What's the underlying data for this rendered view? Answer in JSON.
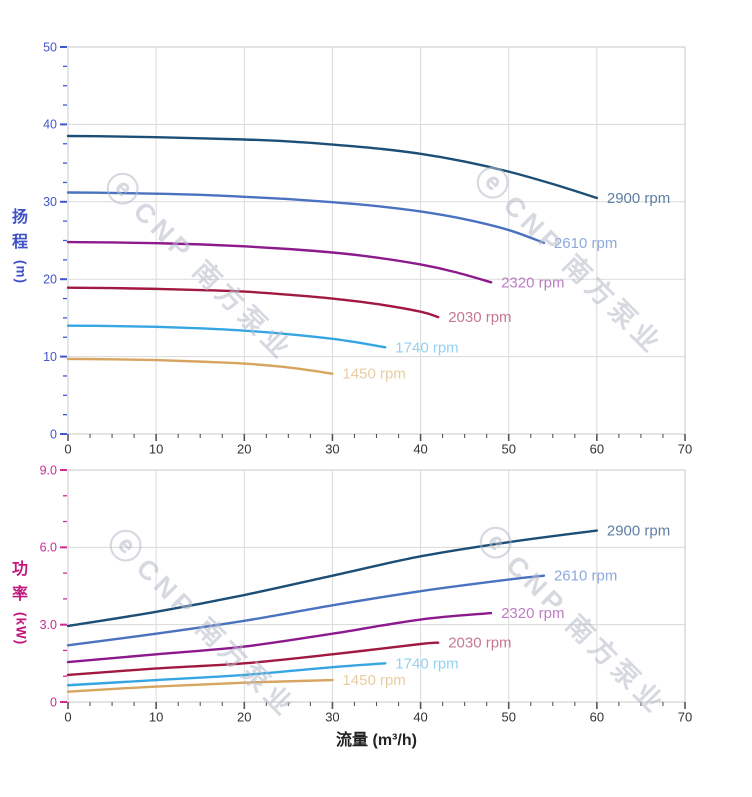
{
  "page": {
    "background": "#ffffff"
  },
  "watermark": {
    "logo_glyph": "ⓔ",
    "text": "CNP 南方泵业"
  },
  "colors": {
    "grid": "#dadada",
    "plot_border": "#c9c9c9",
    "x_tick": "#555555",
    "x_tick_label": "#333333",
    "head_axis": "#4456cd",
    "power_axis": "#cb2b94"
  },
  "chart_data": [
    {
      "type": "line",
      "title": "",
      "ylabel": "扬程 (m)",
      "ylabel_chars": [
        "扬",
        "程"
      ],
      "ylabel_unit": "(m)",
      "xlabel": "",
      "xlim": [
        0,
        70
      ],
      "ylim": [
        0,
        50
      ],
      "x_major": 10,
      "x_minor": 2.5,
      "y_major": 10,
      "y_minor": 2.5,
      "x_tick_labels": [
        "0",
        "10",
        "20",
        "30",
        "40",
        "50",
        "60",
        "70"
      ],
      "y_tick_labels": [
        "0",
        "10",
        "20",
        "30",
        "40",
        "50"
      ],
      "axis_color": "#4456cd",
      "grid": true,
      "legend_position": "end-of-curve labels",
      "series": [
        {
          "name": "2900 rpm",
          "color": "#1d4f76",
          "label_color": "#5f7fa3",
          "x": [
            0,
            5,
            10,
            15,
            20,
            25,
            30,
            35,
            40,
            45,
            50,
            55,
            60
          ],
          "y": [
            38.5,
            38.45,
            38.35,
            38.2,
            38.05,
            37.8,
            37.4,
            36.9,
            36.2,
            35.2,
            33.9,
            32.3,
            30.5
          ]
        },
        {
          "name": "2610 rpm",
          "color": "#4a72c0",
          "label_color": "#8fa9dc",
          "x": [
            0,
            5,
            10,
            15,
            20,
            25,
            30,
            35,
            40,
            45,
            50,
            54
          ],
          "y": [
            31.2,
            31.15,
            31.05,
            30.9,
            30.65,
            30.35,
            29.95,
            29.45,
            28.75,
            27.75,
            26.35,
            24.7
          ]
        },
        {
          "name": "2320 rpm",
          "color": "#8d1a8d",
          "label_color": "#bc7ec2",
          "x": [
            0,
            5,
            10,
            15,
            20,
            25,
            30,
            35,
            40,
            44,
            48
          ],
          "y": [
            24.8,
            24.75,
            24.65,
            24.5,
            24.25,
            23.9,
            23.45,
            22.8,
            21.9,
            20.9,
            19.6
          ]
        },
        {
          "name": "2030 rpm",
          "color": "#a11840",
          "label_color": "#c4798f",
          "x": [
            0,
            5,
            10,
            15,
            20,
            25,
            30,
            35,
            40,
            42
          ],
          "y": [
            18.9,
            18.85,
            18.75,
            18.6,
            18.4,
            18.0,
            17.5,
            16.8,
            15.8,
            15.1
          ]
        },
        {
          "name": "1740 rpm",
          "color": "#36a6e2",
          "label_color": "#93d2f0",
          "x": [
            0,
            5,
            10,
            15,
            20,
            25,
            30,
            33,
            36
          ],
          "y": [
            14.0,
            13.95,
            13.85,
            13.65,
            13.35,
            12.9,
            12.3,
            11.8,
            11.2
          ]
        },
        {
          "name": "1450 rpm",
          "color": "#d8a560",
          "label_color": "#e9cda2",
          "x": [
            0,
            5,
            10,
            15,
            20,
            25,
            30
          ],
          "y": [
            9.7,
            9.65,
            9.55,
            9.35,
            9.1,
            8.6,
            7.8
          ]
        }
      ]
    },
    {
      "type": "line",
      "title": "",
      "ylabel": "功率 (kW)",
      "ylabel_chars": [
        "功",
        "率"
      ],
      "ylabel_unit": "(kW)",
      "xlabel": "流量 (m³/h)",
      "xlim": [
        0,
        70
      ],
      "ylim": [
        0,
        9
      ],
      "x_major": 10,
      "x_minor": 2.5,
      "y_major": 3,
      "y_minor": 1,
      "x_tick_labels": [
        "0",
        "10",
        "20",
        "30",
        "40",
        "50",
        "60",
        "70"
      ],
      "y_tick_labels": [
        "0",
        "3.0",
        "6.0",
        "9.0"
      ],
      "axis_color": "#cb2b94",
      "grid": true,
      "legend_position": "end-of-curve labels",
      "series": [
        {
          "name": "2900 rpm",
          "color": "#1d4f76",
          "label_color": "#5f7fa3",
          "x": [
            0,
            10,
            20,
            30,
            40,
            50,
            60
          ],
          "y": [
            2.95,
            3.5,
            4.15,
            4.9,
            5.65,
            6.2,
            6.65
          ]
        },
        {
          "name": "2610 rpm",
          "color": "#4a72c0",
          "label_color": "#8fa9dc",
          "x": [
            0,
            10,
            20,
            30,
            40,
            50,
            54
          ],
          "y": [
            2.2,
            2.65,
            3.15,
            3.75,
            4.3,
            4.75,
            4.9
          ]
        },
        {
          "name": "2320 rpm",
          "color": "#8d1a8d",
          "label_color": "#bc7ec2",
          "x": [
            0,
            10,
            20,
            30,
            40,
            48
          ],
          "y": [
            1.55,
            1.85,
            2.15,
            2.65,
            3.2,
            3.45
          ]
        },
        {
          "name": "2030 rpm",
          "color": "#a11840",
          "label_color": "#c4798f",
          "x": [
            0,
            10,
            20,
            30,
            40,
            42
          ],
          "y": [
            1.05,
            1.3,
            1.5,
            1.85,
            2.25,
            2.3
          ]
        },
        {
          "name": "1740 rpm",
          "color": "#36a6e2",
          "label_color": "#93d2f0",
          "x": [
            0,
            10,
            20,
            30,
            36
          ],
          "y": [
            0.65,
            0.85,
            1.05,
            1.35,
            1.5
          ]
        },
        {
          "name": "1450 rpm",
          "color": "#d8a560",
          "label_color": "#e9cda2",
          "x": [
            0,
            10,
            20,
            30
          ],
          "y": [
            0.4,
            0.6,
            0.75,
            0.85
          ]
        }
      ]
    }
  ]
}
